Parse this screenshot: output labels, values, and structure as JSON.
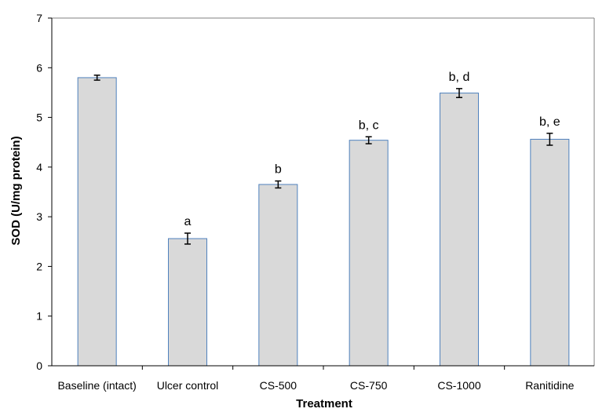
{
  "chart_data": {
    "type": "bar",
    "title": "",
    "xlabel": "Treatment",
    "ylabel": "SOD (U/mg protein)",
    "ylim": [
      0,
      7
    ],
    "yticks": [
      "0",
      "1",
      "2",
      "3",
      "4",
      "5",
      "6",
      "7"
    ],
    "categories": [
      "Baseline (intact)",
      "Ulcer control",
      "CS-500",
      "CS-750",
      "CS-1000",
      "Ranitidine"
    ],
    "values": [
      5.8,
      2.56,
      3.65,
      4.54,
      5.49,
      4.56
    ],
    "errors": [
      0.05,
      0.11,
      0.07,
      0.07,
      0.09,
      0.12
    ],
    "annotations": [
      "",
      "a",
      "b",
      "b, c",
      "b, d",
      "b, e"
    ],
    "grid": false,
    "legend": "none",
    "colors": {
      "bar_fill": "#d9d9d9",
      "bar_stroke": "#4f81bd",
      "axis": "#000000",
      "plot_border": "#808080"
    }
  }
}
